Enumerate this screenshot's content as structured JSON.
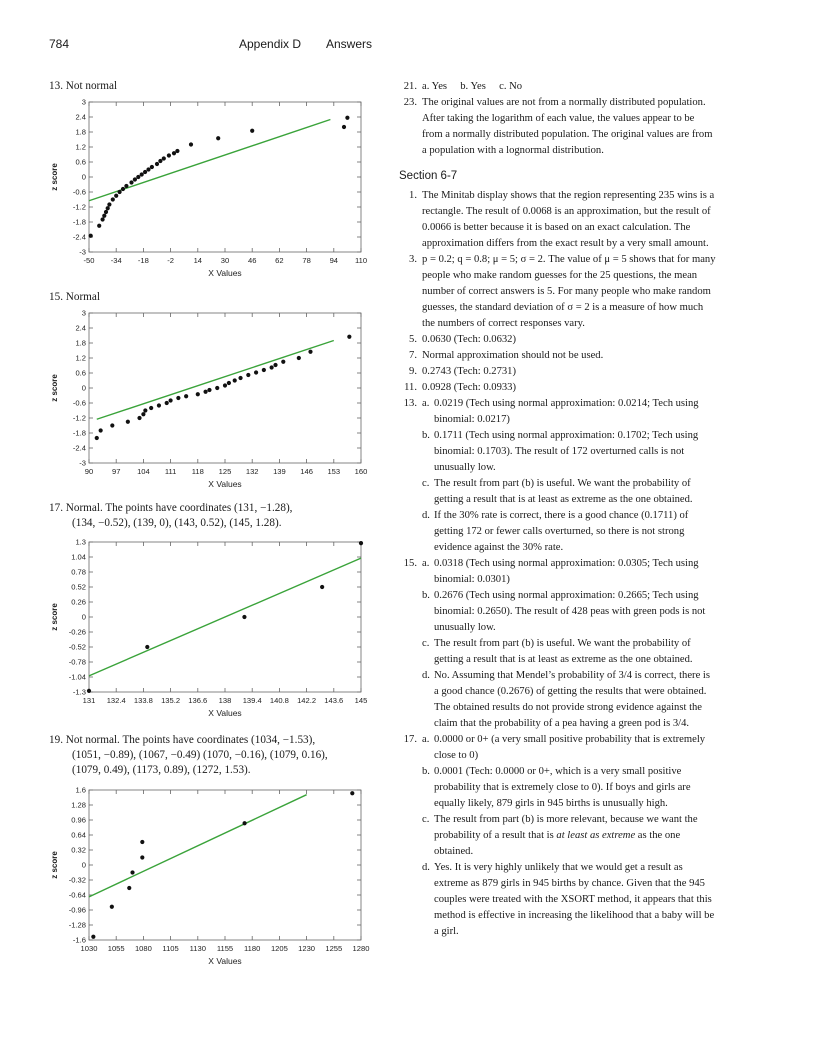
{
  "header": {
    "page_number": "784",
    "section": "Appendix D",
    "title": "Answers"
  },
  "left": {
    "p13": "13. Not normal",
    "p15": "15. Normal",
    "p17": [
      "17. Normal. The points have coordinates (131, −1.28),",
      "(134, −0.52), (139, 0), (143, 0.52), (145, 1.28)."
    ],
    "p19": [
      "19. Not normal. The points have coordinates (1034, −1.53),",
      "(1051, −0.89), (1067, −0.49) (1070, −0.16), (1079, 0.16),",
      "(1079, 0.49), (1173, 0.89), (1272, 1.53)."
    ]
  },
  "right": {
    "a21": "a. Yes     b. Yes     c. No",
    "a23": "The original values are not from a normally distributed population. After taking the logarithm of each value, the values appear to be from a normally distributed population. The original values are from a population with a lognormal distribution.",
    "section": "Section 6-7",
    "s1": "The Minitab display shows that the region representing 235 wins is a rectangle. The result of 0.0068 is an approximation, but the result of 0.0066 is better because it is based on an exact calculation. The approximation differs from the exact result by a very small amount.",
    "s3": "p = 0.2; q = 0.8; μ = 5; σ = 2. The value of μ = 5 shows that for many people who make random guesses for the 25 questions, the mean number of correct answers is 5. For many people who make random guesses, the standard deviation of σ = 2 is a measure of how much the numbers of correct responses vary.",
    "s5": "0.0630 (Tech: 0.0632)",
    "s7": "Normal approximation should not be used.",
    "s9": "0.2743 (Tech: 0.2731)",
    "s11": "0.0928 (Tech: 0.0933)",
    "s13a": "0.0219 (Tech using normal approximation: 0.0214; Tech using binomial: 0.0217)",
    "s13b": "0.1711 (Tech using normal approximation: 0.1702; Tech using binomial: 0.1703). The result of 172 overturned calls is not unusually low.",
    "s13c": "The result from part (b) is useful. We want the probability of getting a result that is at least as extreme as the one obtained.",
    "s13d": "If the 30% rate is correct, there is a good chance (0.1711) of getting 172 or fewer calls overturned, so there is not strong evidence against the 30% rate.",
    "s15a": "0.0318 (Tech using normal approximation: 0.0305; Tech using binomial: 0.0301)",
    "s15b": "0.2676 (Tech using normal approximation: 0.2665; Tech using binomial: 0.2650). The result of 428 peas with green pods is not unusually low.",
    "s15c": "The result from part (b) is useful. We want the probability of getting a result that is at least as extreme as the one obtained.",
    "s15d": "No. Assuming that Mendel’s probability of 3/4 is correct, there is a good chance (0.2676) of getting the results that were obtained. The obtained results do not provide strong evidence against the claim that the probability of a pea having a green pod is 3/4.",
    "s17a": "0.0000 or 0+ (a very small positive probability that is extremely close to 0)",
    "s17b": "0.0001 (Tech: 0.0000 or 0+, which is a very small positive probability that is extremely close to 0). If boys and girls are equally likely, 879 girls in 945 births is unusually high.",
    "s17c_1": "The result from part (b) is more relevant, because we want the probability of a result that is ",
    "s17c_em": "at least as extreme",
    "s17c_2": " as the one obtained.",
    "s17d": "Yes. It is very highly unlikely that we would get a result as extreme as 879 girls in 945 births by chance. Given that the 945 couples were treated with the XSORT method, it appears that this method is effective in increasing the likelihood that a baby will be a girl."
  },
  "chart_data": [
    {
      "type": "scatter",
      "xlabel": "X Values",
      "ylabel": "z score",
      "xticks": [
        "-50",
        "-34",
        "-18",
        "-2",
        "14",
        "30",
        "46",
        "62",
        "78",
        "94",
        "110"
      ],
      "yticks": [
        "-3",
        "-2.4",
        "-1.8",
        "-1.2",
        "-0.6",
        "0",
        "0.6",
        "1.2",
        "1.8",
        "2.4",
        "3"
      ],
      "xlim": [
        -50,
        110
      ],
      "ylim": [
        -3,
        3
      ],
      "points": [
        [
          -49,
          -2.35
        ],
        [
          -44,
          -1.95
        ],
        [
          -42,
          -1.7
        ],
        [
          -41,
          -1.55
        ],
        [
          -40,
          -1.4
        ],
        [
          -39,
          -1.25
        ],
        [
          -38,
          -1.1
        ],
        [
          -36,
          -0.9
        ],
        [
          -34,
          -0.75
        ],
        [
          -32,
          -0.6
        ],
        [
          -30,
          -0.48
        ],
        [
          -28,
          -0.36
        ],
        [
          -25,
          -0.22
        ],
        [
          -23,
          -0.1
        ],
        [
          -21,
          0.0
        ],
        [
          -19,
          0.1
        ],
        [
          -17,
          0.2
        ],
        [
          -15,
          0.3
        ],
        [
          -13,
          0.4
        ],
        [
          -10,
          0.52
        ],
        [
          -8,
          0.64
        ],
        [
          -6,
          0.74
        ],
        [
          -3,
          0.86
        ],
        [
          0,
          0.95
        ],
        [
          2,
          1.04
        ],
        [
          10,
          1.3
        ],
        [
          26,
          1.55
        ],
        [
          46,
          1.85
        ],
        [
          100,
          2.0
        ],
        [
          102,
          2.37
        ]
      ],
      "fit": [
        [
          -50,
          -0.95
        ],
        [
          92,
          2.3
        ]
      ],
      "colors": {
        "fit": "#3aa33a",
        "points": "#111111"
      }
    },
    {
      "type": "scatter",
      "xlabel": "X Values",
      "ylabel": "z score",
      "xticks": [
        "90",
        "97",
        "104",
        "111",
        "118",
        "125",
        "132",
        "139",
        "146",
        "153",
        "160"
      ],
      "yticks": [
        "-3",
        "-2.4",
        "-1.8",
        "-1.2",
        "-0.6",
        "0",
        "0.6",
        "1.2",
        "1.8",
        "2.4",
        "3"
      ],
      "xlim": [
        90,
        160
      ],
      "ylim": [
        -3,
        3
      ],
      "points": [
        [
          92,
          -2.0
        ],
        [
          93,
          -1.7
        ],
        [
          96,
          -1.5
        ],
        [
          100,
          -1.35
        ],
        [
          103,
          -1.2
        ],
        [
          104,
          -1.05
        ],
        [
          104.5,
          -0.9
        ],
        [
          106,
          -0.8
        ],
        [
          108,
          -0.7
        ],
        [
          110,
          -0.6
        ],
        [
          111,
          -0.5
        ],
        [
          113,
          -0.4
        ],
        [
          115,
          -0.33
        ],
        [
          118,
          -0.25
        ],
        [
          120,
          -0.15
        ],
        [
          121,
          -0.08
        ],
        [
          123,
          0.0
        ],
        [
          125,
          0.1
        ],
        [
          126,
          0.2
        ],
        [
          127.5,
          0.3
        ],
        [
          129,
          0.4
        ],
        [
          131,
          0.52
        ],
        [
          133,
          0.62
        ],
        [
          135,
          0.72
        ],
        [
          137,
          0.82
        ],
        [
          138,
          0.92
        ],
        [
          140,
          1.05
        ],
        [
          144,
          1.2
        ],
        [
          147,
          1.45
        ],
        [
          157,
          2.05
        ]
      ],
      "fit": [
        [
          92,
          -1.25
        ],
        [
          153,
          1.9
        ]
      ],
      "colors": {
        "fit": "#3aa33a",
        "points": "#111111"
      }
    },
    {
      "type": "scatter",
      "xlabel": "X Values",
      "ylabel": "z score",
      "xticks": [
        "131",
        "132.4",
        "133.8",
        "135.2",
        "136.6",
        "138",
        "139.4",
        "140.8",
        "142.2",
        "143.6",
        "145"
      ],
      "yticks": [
        "-1.3",
        "-1.04",
        "-0.78",
        "-0.52",
        "-0.26",
        "0",
        "0.26",
        "0.52",
        "0.78",
        "1.04",
        "1.3"
      ],
      "xlim": [
        131,
        145
      ],
      "ylim": [
        -1.3,
        1.3
      ],
      "points": [
        [
          131,
          -1.28
        ],
        [
          134,
          -0.52
        ],
        [
          139,
          0
        ],
        [
          143,
          0.52
        ],
        [
          145,
          1.28
        ]
      ],
      "fit": [
        [
          131,
          -1.02
        ],
        [
          145,
          1.02
        ]
      ],
      "colors": {
        "fit": "#3aa33a",
        "points": "#111111"
      }
    },
    {
      "type": "scatter",
      "xlabel": "X Values",
      "ylabel": "z score",
      "xticks": [
        "1030",
        "1055",
        "1080",
        "1105",
        "1130",
        "1155",
        "1180",
        "1205",
        "1230",
        "1255",
        "1280"
      ],
      "yticks": [
        "-1.6",
        "-1.28",
        "-0.96",
        "-0.64",
        "-0.32",
        "0",
        "0.32",
        "0.64",
        "0.96",
        "1.28",
        "1.6"
      ],
      "xlim": [
        1030,
        1280
      ],
      "ylim": [
        -1.6,
        1.6
      ],
      "points": [
        [
          1034,
          -1.53
        ],
        [
          1051,
          -0.89
        ],
        [
          1067,
          -0.49
        ],
        [
          1070,
          -0.16
        ],
        [
          1079,
          0.16
        ],
        [
          1079,
          0.49
        ],
        [
          1173,
          0.89
        ],
        [
          1272,
          1.53
        ]
      ],
      "fit": [
        [
          1030,
          -0.68
        ],
        [
          1230,
          1.5
        ]
      ],
      "colors": {
        "fit": "#3aa33a",
        "points": "#111111"
      }
    }
  ]
}
